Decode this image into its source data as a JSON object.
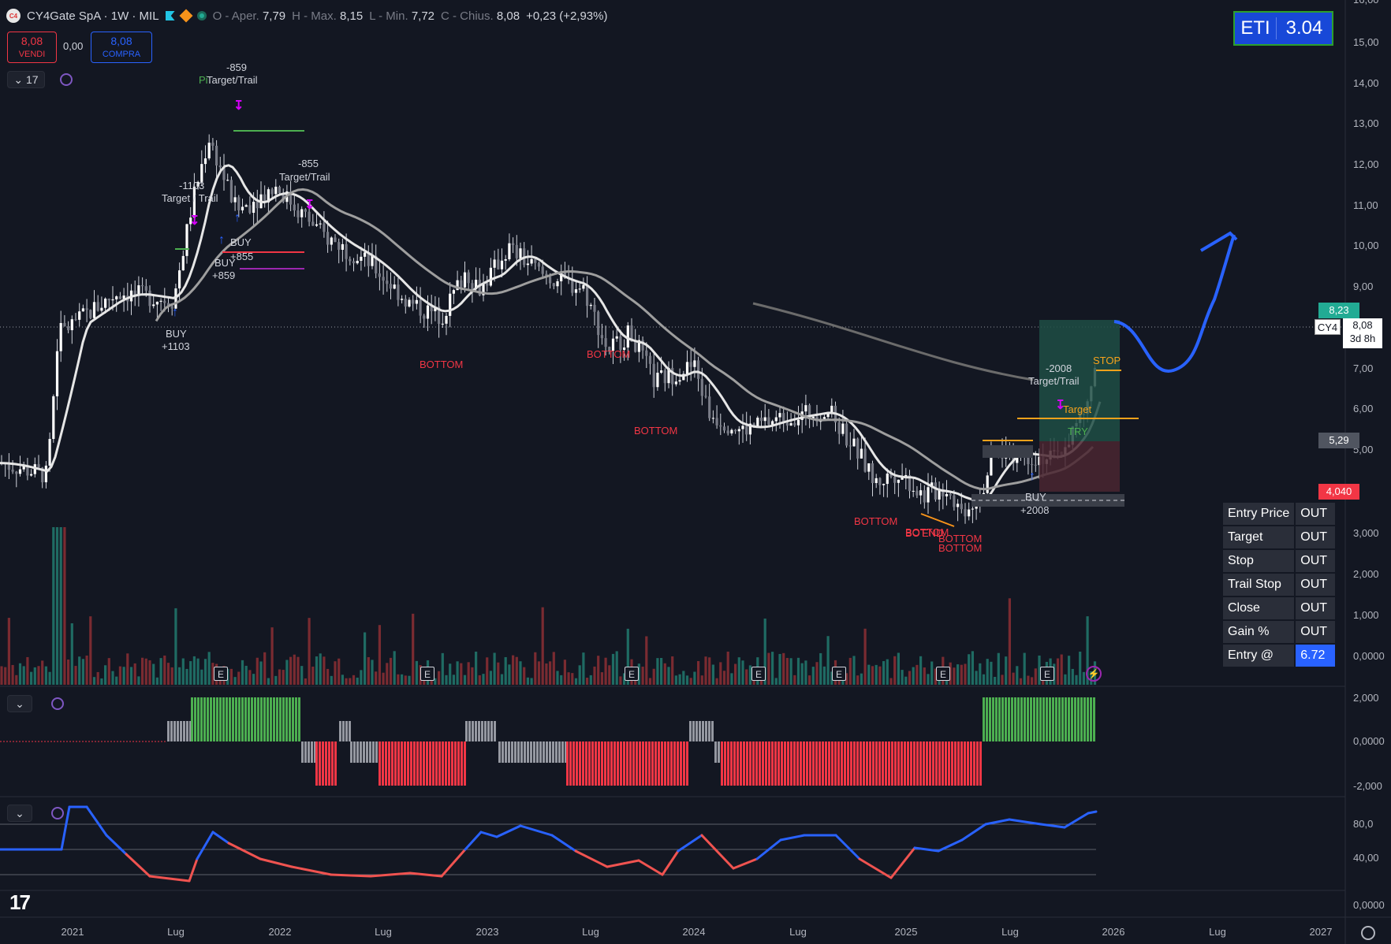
{
  "header": {
    "symbol": "CY4Gate SpA · 1W · MIL",
    "o_label": "O - Aper.",
    "o_val": "7,79",
    "h_label": "H - Max.",
    "h_val": "8,15",
    "l_label": "L - Min.",
    "l_val": "7,72",
    "c_label": "C - Chius.",
    "c_val": "8,08",
    "change": "+0,23 (+2,93%)"
  },
  "trade": {
    "sell_price": "8,08",
    "sell_label": "VENDI",
    "spread": "0,00",
    "buy_price": "8,08",
    "buy_label": "COMPRA"
  },
  "indicator_count": "17",
  "eti": {
    "label": "ETI",
    "value": "3.04"
  },
  "price_axis": {
    "ticks": [
      "15,00",
      "14,00",
      "13,00",
      "12,00",
      "11,00",
      "10,00",
      "9,00",
      "7,00",
      "6,00",
      "5,00",
      "3,000",
      "2,000",
      "1,000",
      "0,0000"
    ],
    "top_partial": "16,00",
    "osc1_ticks": [
      "2,000",
      "0,0000",
      "-2,000"
    ],
    "osc2_ticks": [
      "80,0",
      "40,00",
      "0,0000"
    ]
  },
  "price_tags": {
    "green": "8,23",
    "current_symbol": "CY4",
    "current": "8,08",
    "countdown": "3d 8h",
    "gray": "5,29",
    "red": "4,040"
  },
  "time_axis": [
    "2021",
    "Lug",
    "2022",
    "Lug",
    "2023",
    "Lug",
    "2024",
    "Lug",
    "2025",
    "Lug",
    "2026",
    "Lug",
    "2027"
  ],
  "info_table": [
    {
      "k": "Entry Price",
      "v": "OUT"
    },
    {
      "k": "Target",
      "v": "OUT"
    },
    {
      "k": "Stop",
      "v": "OUT"
    },
    {
      "k": "Trail Stop",
      "v": "OUT"
    },
    {
      "k": "Close",
      "v": "OUT"
    },
    {
      "k": "Gain %",
      "v": "OUT"
    },
    {
      "k": "Entry @",
      "v": "6.72"
    }
  ],
  "annotations": {
    "bottom": "BOTTOM",
    "buy": "BUY",
    "target_trail": "Target/Trail",
    "target_trail_split": "Target / Trail",
    "target": "Target",
    "stop": "STOP",
    "entry_frag": "TRY",
    "bot_frag": "BOT",
    "end_frag": "END",
    "pi_frag": "Pi",
    "v1": "-859",
    "v2": "-1103",
    "v3": "-855",
    "v4": "-2008",
    "b1": "+1103",
    "b2": "+859",
    "b3": "+855",
    "b4": "+2008",
    "earnings": "E"
  },
  "colors": {
    "bg": "#131722",
    "up": "#22ab94",
    "down": "#f23645",
    "accent": "#2962ff"
  }
}
